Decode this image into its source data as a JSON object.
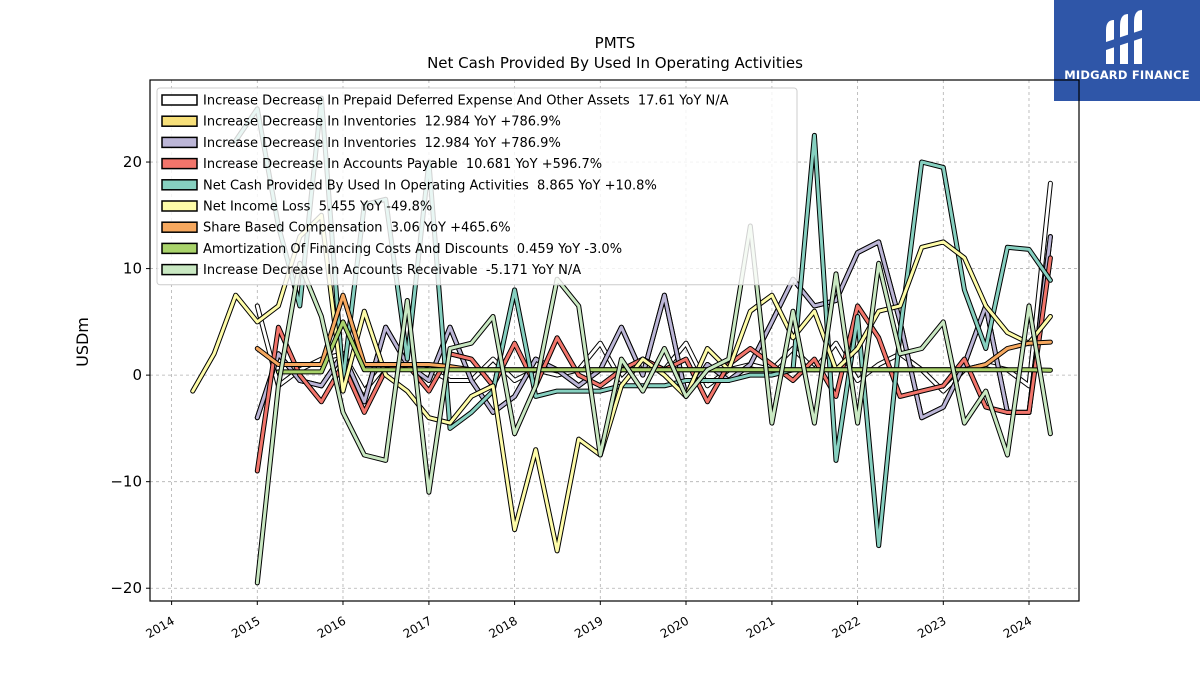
{
  "brand": {
    "name": "MIDGARD FINANCE"
  },
  "chart_data": {
    "type": "line",
    "title": "PMTS",
    "subtitle": "Net Cash Provided By Used In Operating Activities",
    "ylabel": "USDm",
    "xlabel": "",
    "xlim": [
      "2013-10-01",
      "2024-08-01"
    ],
    "ylim": [
      -21.2,
      27.7
    ],
    "x_ticks": [
      "2014",
      "2015",
      "2016",
      "2017",
      "2018",
      "2019",
      "2020",
      "2021",
      "2022",
      "2023",
      "2024"
    ],
    "y_ticks": [
      -20,
      -10,
      0,
      10,
      20
    ],
    "grid": true,
    "legend_position": "top-left",
    "series": [
      {
        "name": "Increase Decrease In Prepaid Deferred Expense And Other Assets  17.61 YoY N/A",
        "color": "#ffffff",
        "x": [
          "2015-01-01",
          "2015-04-01",
          "2015-07-01",
          "2015-10-01",
          "2016-01-01",
          "2016-04-01",
          "2016-07-01",
          "2016-10-01",
          "2017-01-01",
          "2017-04-01",
          "2017-07-01",
          "2017-10-01",
          "2018-01-01",
          "2018-04-01",
          "2018-07-01",
          "2018-10-01",
          "2019-01-01",
          "2019-04-01",
          "2019-07-01",
          "2019-10-01",
          "2020-01-01",
          "2020-04-01",
          "2020-07-01",
          "2020-10-01",
          "2021-01-01",
          "2021-04-01",
          "2021-07-01",
          "2021-10-01",
          "2022-01-01",
          "2022-04-01",
          "2022-07-01",
          "2022-10-01",
          "2023-01-01",
          "2023-04-01",
          "2023-07-01",
          "2023-10-01",
          "2024-01-01",
          "2024-04-01"
        ],
        "values": [
          6.5,
          -1.0,
          0.5,
          1.5,
          2.0,
          -1.5,
          1.0,
          1.0,
          0.5,
          -0.5,
          -0.5,
          1.5,
          -0.5,
          0.5,
          0.0,
          0.5,
          3.0,
          -0.5,
          1.5,
          0.5,
          3.0,
          -1.0,
          0.5,
          1.0,
          0.5,
          2.5,
          0.5,
          3.0,
          -0.5,
          1.0,
          2.0,
          0.5,
          -1.5,
          0.5,
          1.0,
          0.5,
          -1.0,
          18.0
        ]
      },
      {
        "name": "Increase Decrease In Inventories  12.984 YoY +786.9%",
        "color": "#f7e07a",
        "x": [
          "2015-01-01",
          "2015-04-01",
          "2015-07-01",
          "2015-10-01",
          "2016-01-01",
          "2016-04-01",
          "2016-07-01",
          "2016-10-01",
          "2017-01-01",
          "2017-04-01",
          "2017-07-01",
          "2017-10-01",
          "2018-01-01",
          "2018-04-01",
          "2018-07-01",
          "2018-10-01",
          "2019-01-01",
          "2019-04-01",
          "2019-07-01",
          "2019-10-01",
          "2020-01-01",
          "2020-04-01",
          "2020-07-01",
          "2020-10-01",
          "2021-01-01",
          "2021-04-01",
          "2021-07-01",
          "2021-10-01",
          "2022-01-01",
          "2022-04-01",
          "2022-07-01",
          "2022-10-01",
          "2023-01-01",
          "2023-04-01",
          "2023-07-01",
          "2023-10-01",
          "2024-01-01",
          "2024-04-01"
        ],
        "values": [
          -4.0,
          2.0,
          -0.5,
          -1.0,
          2.0,
          -2.5,
          4.5,
          1.0,
          -0.5,
          4.5,
          -0.5,
          -3.5,
          -2.0,
          1.5,
          0.5,
          -1.0,
          0.5,
          4.5,
          0.0,
          7.5,
          -2.0,
          1.0,
          -0.5,
          1.0,
          5.0,
          9.0,
          6.5,
          7.0,
          11.5,
          12.5,
          5.0,
          -4.0,
          -3.0,
          1.0,
          6.5,
          -3.5,
          -3.5,
          13.0
        ]
      },
      {
        "name": "Increase Decrease In Inventories  12.984 YoY +786.9%",
        "color": "#bcb6d7",
        "x": [
          "2015-01-01",
          "2015-04-01",
          "2015-07-01",
          "2015-10-01",
          "2016-01-01",
          "2016-04-01",
          "2016-07-01",
          "2016-10-01",
          "2017-01-01",
          "2017-04-01",
          "2017-07-01",
          "2017-10-01",
          "2018-01-01",
          "2018-04-01",
          "2018-07-01",
          "2018-10-01",
          "2019-01-01",
          "2019-04-01",
          "2019-07-01",
          "2019-10-01",
          "2020-01-01",
          "2020-04-01",
          "2020-07-01",
          "2020-10-01",
          "2021-01-01",
          "2021-04-01",
          "2021-07-01",
          "2021-10-01",
          "2022-01-01",
          "2022-04-01",
          "2022-07-01",
          "2022-10-01",
          "2023-01-01",
          "2023-04-01",
          "2023-07-01",
          "2023-10-01",
          "2024-01-01",
          "2024-04-01"
        ],
        "values": [
          -4.0,
          2.0,
          -0.5,
          -1.0,
          2.0,
          -2.5,
          4.5,
          1.0,
          -0.5,
          4.5,
          -0.5,
          -3.5,
          -2.0,
          1.5,
          0.5,
          -1.0,
          0.5,
          4.5,
          0.0,
          7.5,
          -2.0,
          1.0,
          -0.5,
          1.0,
          5.0,
          9.0,
          6.5,
          7.0,
          11.5,
          12.5,
          5.0,
          -4.0,
          -3.0,
          1.0,
          6.5,
          -3.5,
          -3.5,
          13.0
        ]
      },
      {
        "name": "Increase Decrease In Accounts Payable  10.681 YoY +596.7%",
        "color": "#f2756b",
        "x": [
          "2015-01-01",
          "2015-04-01",
          "2015-07-01",
          "2015-10-01",
          "2016-01-01",
          "2016-04-01",
          "2016-07-01",
          "2016-10-01",
          "2017-01-01",
          "2017-04-01",
          "2017-07-01",
          "2017-10-01",
          "2018-01-01",
          "2018-04-01",
          "2018-07-01",
          "2018-10-01",
          "2019-01-01",
          "2019-04-01",
          "2019-07-01",
          "2019-10-01",
          "2020-01-01",
          "2020-04-01",
          "2020-07-01",
          "2020-10-01",
          "2021-01-01",
          "2021-04-01",
          "2021-07-01",
          "2021-10-01",
          "2022-01-01",
          "2022-04-01",
          "2022-07-01",
          "2022-10-01",
          "2023-01-01",
          "2023-04-01",
          "2023-07-01",
          "2023-10-01",
          "2024-01-01",
          "2024-04-01"
        ],
        "values": [
          -9.0,
          4.5,
          0.0,
          -2.5,
          1.0,
          -3.5,
          0.5,
          1.0,
          -1.5,
          2.0,
          1.5,
          -1.0,
          3.0,
          -1.0,
          3.5,
          0.0,
          -1.0,
          0.5,
          1.5,
          0.5,
          1.5,
          -2.5,
          1.0,
          2.5,
          1.0,
          -0.5,
          1.5,
          -2.0,
          6.5,
          3.5,
          -2.0,
          -1.5,
          -1.0,
          1.5,
          -3.0,
          -3.5,
          -3.5,
          11.0
        ]
      },
      {
        "name": "Net Cash Provided By Used In Operating Activities  8.865 YoY +10.8%",
        "color": "#86d0c0",
        "x": [
          "2014-10-01",
          "2015-01-01",
          "2015-04-01",
          "2015-07-01",
          "2015-10-01",
          "2016-01-01",
          "2016-04-01",
          "2016-07-01",
          "2016-10-01",
          "2017-01-01",
          "2017-04-01",
          "2017-07-01",
          "2017-10-01",
          "2018-01-01",
          "2018-04-01",
          "2018-07-01",
          "2018-10-01",
          "2019-01-01",
          "2019-04-01",
          "2019-07-01",
          "2019-10-01",
          "2020-01-01",
          "2020-04-01",
          "2020-07-01",
          "2020-10-01",
          "2021-01-01",
          "2021-04-01",
          "2021-07-01",
          "2021-10-01",
          "2022-01-01",
          "2022-04-01",
          "2022-07-01",
          "2022-10-01",
          "2023-01-01",
          "2023-04-01",
          "2023-07-01",
          "2023-10-01",
          "2024-01-01",
          "2024-04-01"
        ],
        "values": [
          22.0,
          25.0,
          14.0,
          6.5,
          26.0,
          -0.5,
          16.0,
          16.5,
          1.5,
          20.0,
          -5.0,
          -3.5,
          -1.5,
          8.0,
          -2.0,
          -1.5,
          -1.5,
          -1.5,
          -1.0,
          -1.0,
          -1.0,
          -0.5,
          -0.5,
          -0.5,
          0.0,
          0.0,
          0.5,
          22.5,
          -8.0,
          5.5,
          -16.0,
          4.0,
          20.0,
          19.5,
          8.0,
          2.5,
          12.0,
          11.8,
          8.9
        ]
      },
      {
        "name": "Net Income Loss  5.455 YoY -49.8%",
        "color": "#fefca8",
        "x": [
          "2014-04-01",
          "2014-07-01",
          "2014-10-01",
          "2015-01-01",
          "2015-04-01",
          "2015-07-01",
          "2015-10-01",
          "2016-01-01",
          "2016-04-01",
          "2016-07-01",
          "2016-10-01",
          "2017-01-01",
          "2017-04-01",
          "2017-07-01",
          "2017-10-01",
          "2018-01-01",
          "2018-04-01",
          "2018-07-01",
          "2018-10-01",
          "2019-01-01",
          "2019-04-01",
          "2019-07-01",
          "2019-10-01",
          "2020-01-01",
          "2020-04-01",
          "2020-07-01",
          "2020-10-01",
          "2021-01-01",
          "2021-04-01",
          "2021-07-01",
          "2021-10-01",
          "2022-01-01",
          "2022-04-01",
          "2022-07-01",
          "2022-10-01",
          "2023-01-01",
          "2023-04-01",
          "2023-07-01",
          "2023-10-01",
          "2024-01-01",
          "2024-04-01"
        ],
        "values": [
          -1.5,
          2.0,
          7.5,
          5.0,
          6.5,
          13.0,
          15.0,
          -1.5,
          6.0,
          0.0,
          -1.5,
          -4.0,
          -4.5,
          -2.0,
          -1.0,
          -14.5,
          -7.0,
          -16.5,
          -6.0,
          -7.5,
          -1.0,
          1.5,
          0.0,
          -2.0,
          2.5,
          0.5,
          6.0,
          7.5,
          3.5,
          6.0,
          0.5,
          2.5,
          6.0,
          6.5,
          12.0,
          12.5,
          11.0,
          6.5,
          4.0,
          3.0,
          5.5
        ]
      },
      {
        "name": "Share Based Compensation  3.06 YoY +465.6%",
        "color": "#f6a85f",
        "x": [
          "2015-01-01",
          "2015-04-01",
          "2015-07-01",
          "2015-10-01",
          "2016-01-01",
          "2016-04-01",
          "2016-07-01",
          "2016-10-01",
          "2017-01-01",
          "2017-04-01",
          "2017-07-01",
          "2017-10-01",
          "2018-01-01",
          "2018-04-01",
          "2018-07-01",
          "2018-10-01",
          "2019-01-01",
          "2019-04-01",
          "2019-07-01",
          "2019-10-01",
          "2020-01-01",
          "2020-04-01",
          "2020-07-01",
          "2020-10-01",
          "2021-01-01",
          "2021-04-01",
          "2021-07-01",
          "2021-10-01",
          "2022-01-01",
          "2022-04-01",
          "2022-07-01",
          "2022-10-01",
          "2023-01-01",
          "2023-04-01",
          "2023-07-01",
          "2023-10-01",
          "2024-01-01",
          "2024-04-01"
        ],
        "values": [
          2.5,
          1.0,
          1.0,
          1.0,
          7.5,
          1.0,
          1.0,
          1.0,
          1.0,
          0.8,
          0.5,
          0.5,
          0.5,
          0.5,
          0.5,
          0.5,
          0.5,
          0.5,
          0.5,
          0.5,
          0.5,
          0.5,
          0.5,
          0.5,
          0.5,
          0.5,
          0.5,
          0.5,
          0.5,
          0.5,
          0.5,
          0.5,
          0.5,
          0.5,
          1.0,
          2.5,
          3.0,
          3.1
        ]
      },
      {
        "name": "Amortization Of Financing Costs And Discounts  0.459 YoY -3.0%",
        "color": "#a9d36b",
        "x": [
          "2015-04-01",
          "2015-07-01",
          "2015-10-01",
          "2016-01-01",
          "2016-04-01",
          "2016-07-01",
          "2016-10-01",
          "2017-01-01",
          "2017-04-01",
          "2017-07-01",
          "2017-10-01",
          "2018-01-01",
          "2018-04-01",
          "2018-07-01",
          "2018-10-01",
          "2019-01-01",
          "2019-04-01",
          "2019-07-01",
          "2019-10-01",
          "2020-01-01",
          "2020-04-01",
          "2020-07-01",
          "2020-10-01",
          "2021-01-01",
          "2021-04-01",
          "2021-07-01",
          "2021-10-01",
          "2022-01-01",
          "2022-04-01",
          "2022-07-01",
          "2022-10-01",
          "2023-01-01",
          "2023-04-01",
          "2023-07-01",
          "2023-10-01",
          "2024-01-01",
          "2024-04-01"
        ],
        "values": [
          0.3,
          0.3,
          0.3,
          5.0,
          0.5,
          0.5,
          0.5,
          0.5,
          0.5,
          0.5,
          0.5,
          0.5,
          0.5,
          0.5,
          0.5,
          0.5,
          0.5,
          0.5,
          0.5,
          0.5,
          0.5,
          0.5,
          0.5,
          0.5,
          0.5,
          0.5,
          0.5,
          0.5,
          0.5,
          0.5,
          0.5,
          0.5,
          0.5,
          0.5,
          0.5,
          0.5,
          0.46
        ]
      },
      {
        "name": "Increase Decrease In Accounts Receivable  -5.171 YoY N/A",
        "color": "#c9e8c2",
        "x": [
          "2015-01-01",
          "2015-04-01",
          "2015-07-01",
          "2015-10-01",
          "2016-01-01",
          "2016-04-01",
          "2016-07-01",
          "2016-10-01",
          "2017-01-01",
          "2017-04-01",
          "2017-07-01",
          "2017-10-01",
          "2018-01-01",
          "2018-04-01",
          "2018-07-01",
          "2018-10-01",
          "2019-01-01",
          "2019-04-01",
          "2019-07-01",
          "2019-10-01",
          "2020-01-01",
          "2020-04-01",
          "2020-07-01",
          "2020-10-01",
          "2021-01-01",
          "2021-04-01",
          "2021-07-01",
          "2021-10-01",
          "2022-01-01",
          "2022-04-01",
          "2022-07-01",
          "2022-10-01",
          "2023-01-01",
          "2023-04-01",
          "2023-07-01",
          "2023-10-01",
          "2024-01-01",
          "2024-04-01"
        ],
        "values": [
          -19.5,
          -1.0,
          10.5,
          5.5,
          -3.5,
          -7.5,
          -8.0,
          7.0,
          -11.0,
          2.5,
          3.0,
          5.5,
          -5.5,
          -1.0,
          9.0,
          6.5,
          -7.5,
          1.5,
          -1.5,
          2.5,
          -2.0,
          0.5,
          1.5,
          14.0,
          -4.5,
          6.0,
          -4.5,
          9.5,
          -4.5,
          10.5,
          2.0,
          2.5,
          5.0,
          -4.5,
          -1.5,
          -7.5,
          6.5,
          -5.5
        ]
      }
    ]
  }
}
